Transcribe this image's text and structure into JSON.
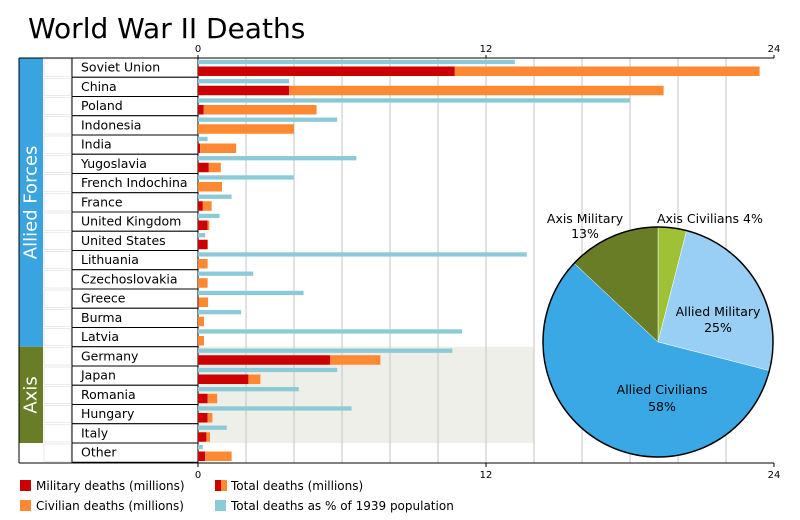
{
  "chart_data": [
    {
      "type": "bar",
      "title": "World War II Deaths",
      "x_ticks": [
        "0",
        "12",
        "24"
      ],
      "xlim": [
        0,
        24
      ],
      "groups": [
        {
          "label": "Allied Forces",
          "color": "#3aa4e0"
        },
        {
          "label": "Axis",
          "color": "#687d25"
        }
      ],
      "categories": [
        "Soviet Union",
        "China",
        "Poland",
        "Indonesia",
        "India",
        "Yugoslavia",
        "French Indochina",
        "France",
        "United Kingdom",
        "United States",
        "Lithuania",
        "Czechoslovakia",
        "Greece",
        "Burma",
        "Latvia",
        "Germany",
        "Japan",
        "Romania",
        "Hungary",
        "Italy",
        "Other"
      ],
      "category_group": [
        "Allied Forces",
        "Allied Forces",
        "Allied Forces",
        "Allied Forces",
        "Allied Forces",
        "Allied Forces",
        "Allied Forces",
        "Allied Forces",
        "Allied Forces",
        "Allied Forces",
        "Allied Forces",
        "Allied Forces",
        "Allied Forces",
        "Allied Forces",
        "Allied Forces",
        "Axis",
        "Axis",
        "Axis",
        "Axis",
        "Axis",
        ""
      ],
      "series": [
        {
          "name": "Military deaths (millions)",
          "color": "#cc0000",
          "values": [
            10.7,
            3.8,
            0.24,
            0,
            0.09,
            0.45,
            0,
            0.2,
            0.4,
            0.4,
            0,
            0,
            0.02,
            0,
            0,
            5.5,
            2.1,
            0.4,
            0.4,
            0.35,
            0.3
          ]
        },
        {
          "name": "Civilian deaths (millions)",
          "color": "#ff8833",
          "values": [
            12.7,
            15.6,
            4.7,
            4.0,
            1.5,
            0.5,
            1.0,
            0.37,
            0.07,
            0.01,
            0.4,
            0.4,
            0.4,
            0.25,
            0.25,
            2.1,
            0.5,
            0.4,
            0.2,
            0.15,
            1.1
          ]
        },
        {
          "name": "Total deaths as % of 1939 population",
          "color": "#8ccad8",
          "values": [
            13.2,
            3.8,
            18.0,
            5.8,
            0.4,
            6.6,
            4.0,
            1.4,
            0.9,
            0.3,
            13.7,
            2.3,
            4.4,
            1.8,
            11.0,
            10.6,
            5.8,
            4.2,
            6.4,
            1.2,
            0.2
          ]
        }
      ],
      "legend_extra": {
        "name": "Total deaths (millions)",
        "colors": [
          "#cc0000",
          "#ff8833"
        ]
      },
      "legend_position": "bottom"
    },
    {
      "type": "pie",
      "slices": [
        {
          "label": "Axis Civilians",
          "percent": "4%",
          "value": 4,
          "color": "#9ec135"
        },
        {
          "label": "Allied Military",
          "percent": "25%",
          "value": 25,
          "color": "#99cef5"
        },
        {
          "label": "Allied Civilians",
          "percent": "58%",
          "value": 58,
          "color": "#3aa8e5"
        },
        {
          "label": "Axis Military",
          "percent": "13%",
          "value": 13,
          "color": "#687d25"
        }
      ],
      "start_angle_deg": 0
    }
  ]
}
